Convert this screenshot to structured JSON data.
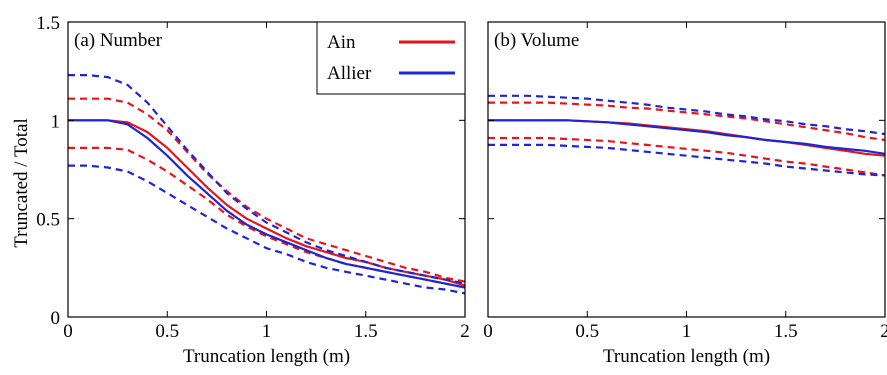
{
  "figure": {
    "ylabel": "Truncated  /  Total",
    "colors": {
      "Ain": "#e8141b",
      "Allier": "#1c26d6",
      "axis": "#000000"
    }
  },
  "chart_data": [
    {
      "type": "line",
      "panel_label": "(a) Number",
      "xlabel": "Truncation length (m)",
      "ylabel": "Truncated  /  Total",
      "xlim": [
        0,
        2
      ],
      "ylim": [
        0,
        1.5
      ],
      "xticks": [
        "0",
        "0.5",
        "1",
        "1.5",
        "2"
      ],
      "yticks": [
        "0",
        "0.5",
        "1",
        "1.5"
      ],
      "legend": {
        "placement": "top-right",
        "entries": [
          "Ain",
          "Allier"
        ]
      },
      "x": [
        0,
        0.1,
        0.2,
        0.3,
        0.4,
        0.5,
        0.6,
        0.7,
        0.8,
        0.9,
        1.0,
        1.1,
        1.2,
        1.3,
        1.4,
        1.5,
        1.6,
        1.7,
        1.8,
        1.9,
        2.0
      ],
      "series": [
        {
          "name": "Ain",
          "style": "solid",
          "values": [
            1.0,
            1.0,
            1.0,
            0.99,
            0.94,
            0.86,
            0.76,
            0.66,
            0.57,
            0.5,
            0.45,
            0.4,
            0.36,
            0.33,
            0.3,
            0.28,
            0.25,
            0.23,
            0.21,
            0.19,
            0.16
          ]
        },
        {
          "name": "Ain",
          "style": "dashed",
          "values": [
            1.11,
            1.11,
            1.11,
            1.09,
            1.03,
            0.95,
            0.84,
            0.73,
            0.64,
            0.56,
            0.5,
            0.45,
            0.4,
            0.37,
            0.34,
            0.31,
            0.28,
            0.25,
            0.23,
            0.2,
            0.18
          ]
        },
        {
          "name": "Ain",
          "style": "dashed",
          "values": [
            0.86,
            0.86,
            0.86,
            0.85,
            0.8,
            0.74,
            0.67,
            0.6,
            0.52,
            0.46,
            0.41,
            0.37,
            0.33,
            0.3,
            0.27,
            0.25,
            0.23,
            0.21,
            0.19,
            0.17,
            0.15
          ]
        },
        {
          "name": "Allier",
          "style": "solid",
          "values": [
            1.0,
            1.0,
            1.0,
            0.98,
            0.91,
            0.82,
            0.72,
            0.63,
            0.54,
            0.47,
            0.42,
            0.38,
            0.34,
            0.3,
            0.27,
            0.25,
            0.23,
            0.21,
            0.19,
            0.17,
            0.15
          ]
        },
        {
          "name": "Allier",
          "style": "dashed",
          "values": [
            1.23,
            1.23,
            1.22,
            1.18,
            1.09,
            0.97,
            0.85,
            0.74,
            0.63,
            0.55,
            0.48,
            0.43,
            0.38,
            0.34,
            0.31,
            0.28,
            0.25,
            0.23,
            0.21,
            0.19,
            0.17
          ]
        },
        {
          "name": "Allier",
          "style": "dashed",
          "values": [
            0.77,
            0.77,
            0.76,
            0.74,
            0.69,
            0.63,
            0.57,
            0.51,
            0.45,
            0.4,
            0.35,
            0.32,
            0.28,
            0.25,
            0.23,
            0.21,
            0.19,
            0.17,
            0.15,
            0.14,
            0.12
          ]
        }
      ]
    },
    {
      "type": "line",
      "panel_label": "(b) Volume",
      "xlabel": "Truncation length (m)",
      "xlim": [
        0,
        2
      ],
      "ylim": [
        0,
        1.5
      ],
      "xticks": [
        "0",
        "0.5",
        "1",
        "1.5",
        "2"
      ],
      "x": [
        0,
        0.1,
        0.2,
        0.3,
        0.4,
        0.5,
        0.6,
        0.7,
        0.8,
        0.9,
        1.0,
        1.1,
        1.2,
        1.3,
        1.4,
        1.5,
        1.6,
        1.7,
        1.8,
        1.9,
        2.0
      ],
      "series": [
        {
          "name": "Ain",
          "style": "solid",
          "values": [
            1.0,
            1.0,
            1.0,
            1.0,
            1.0,
            0.995,
            0.99,
            0.985,
            0.975,
            0.965,
            0.955,
            0.945,
            0.93,
            0.915,
            0.9,
            0.89,
            0.875,
            0.86,
            0.845,
            0.83,
            0.82
          ]
        },
        {
          "name": "Ain",
          "style": "dashed",
          "values": [
            1.09,
            1.09,
            1.09,
            1.09,
            1.085,
            1.08,
            1.075,
            1.065,
            1.06,
            1.05,
            1.04,
            1.03,
            1.02,
            1.01,
            0.995,
            0.98,
            0.965,
            0.95,
            0.935,
            0.915,
            0.9
          ]
        },
        {
          "name": "Ain",
          "style": "dashed",
          "values": [
            0.91,
            0.91,
            0.91,
            0.91,
            0.905,
            0.9,
            0.895,
            0.885,
            0.875,
            0.865,
            0.855,
            0.845,
            0.835,
            0.82,
            0.805,
            0.79,
            0.78,
            0.765,
            0.75,
            0.735,
            0.72
          ]
        },
        {
          "name": "Allier",
          "style": "solid",
          "values": [
            1.0,
            1.0,
            1.0,
            1.0,
            1.0,
            0.995,
            0.99,
            0.98,
            0.97,
            0.96,
            0.95,
            0.94,
            0.925,
            0.915,
            0.9,
            0.89,
            0.88,
            0.865,
            0.855,
            0.845,
            0.83
          ]
        },
        {
          "name": "Allier",
          "style": "dashed",
          "values": [
            1.125,
            1.125,
            1.125,
            1.12,
            1.115,
            1.11,
            1.1,
            1.09,
            1.08,
            1.065,
            1.055,
            1.045,
            1.03,
            1.02,
            1.005,
            0.995,
            0.98,
            0.97,
            0.955,
            0.945,
            0.93
          ]
        },
        {
          "name": "Allier",
          "style": "dashed",
          "values": [
            0.875,
            0.875,
            0.875,
            0.875,
            0.87,
            0.865,
            0.86,
            0.85,
            0.84,
            0.83,
            0.82,
            0.81,
            0.8,
            0.79,
            0.78,
            0.765,
            0.755,
            0.745,
            0.735,
            0.725,
            0.72
          ]
        }
      ]
    }
  ]
}
